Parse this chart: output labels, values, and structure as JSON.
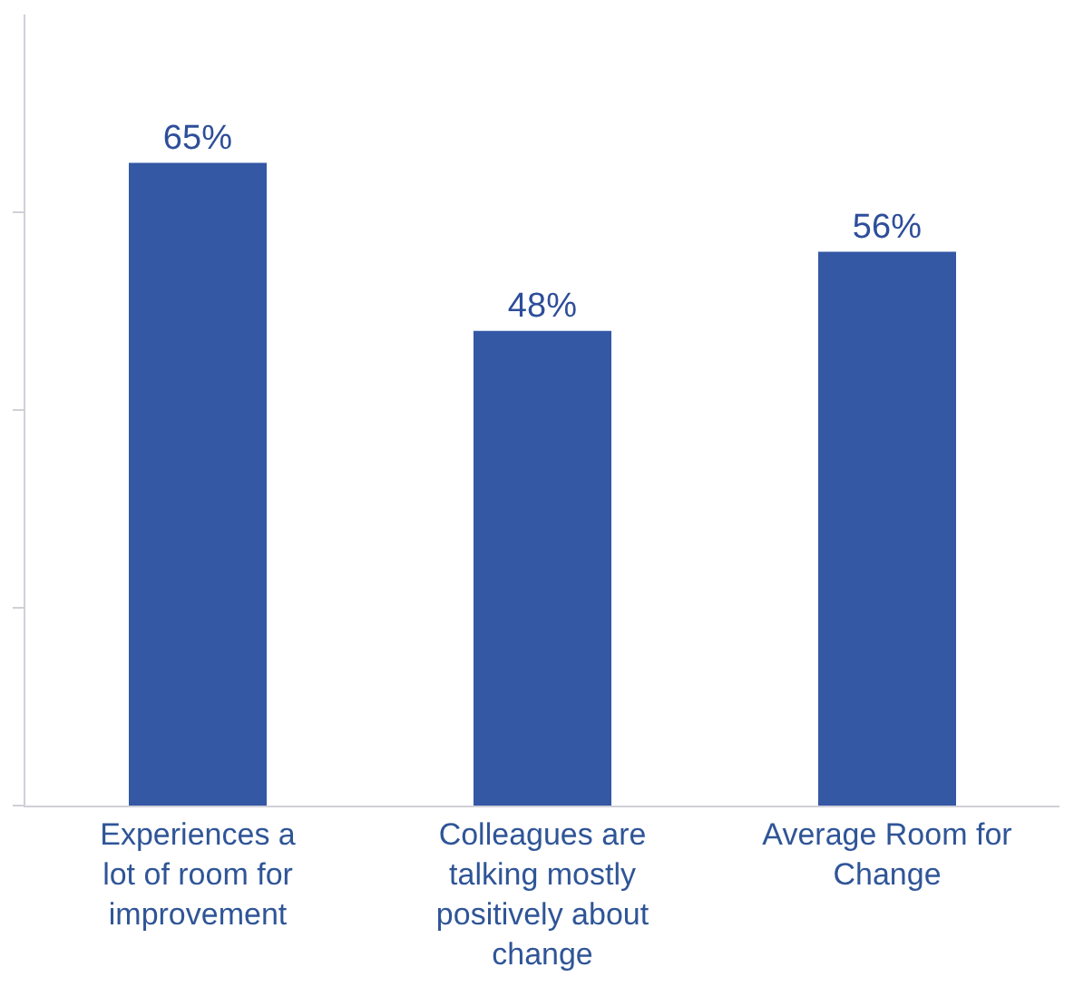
{
  "chart_data": {
    "type": "bar",
    "categories": [
      "Experiences a lot of room for improvement",
      "Colleagues are talking mostly positively about change",
      "Average Room for Change"
    ],
    "values": [
      65,
      48,
      56
    ],
    "value_labels": [
      "65%",
      "48%",
      "56%"
    ],
    "color": "#3558a5",
    "ylim": [
      0,
      80
    ],
    "yticks": [
      {
        "value": 0,
        "label": null
      },
      {
        "value": 20,
        "label": null
      },
      {
        "value": 40,
        "label": null
      },
      {
        "value": 60,
        "label": null
      }
    ],
    "tick_labels": "x"
  }
}
